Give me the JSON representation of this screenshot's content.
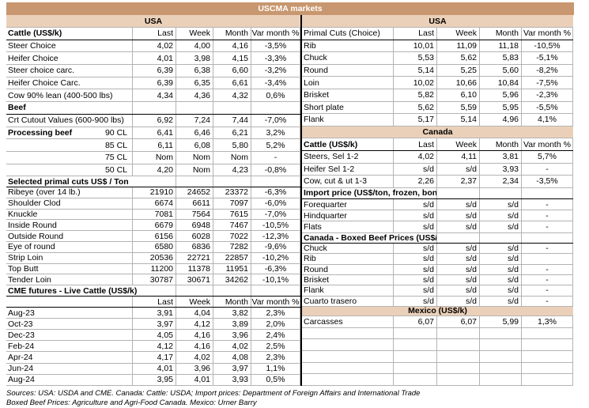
{
  "title": "USCMA markets",
  "columns": {
    "last": "Last",
    "week": "Week",
    "month": "Month",
    "var": "Var month %"
  },
  "colors": {
    "title_band": "#C8976F",
    "section_band": "#EBD0B9",
    "gridline": "#B3B3B3"
  },
  "left_table": {
    "rows": [
      {
        "t": "band",
        "label": "USA"
      },
      {
        "t": "head",
        "label": "Cattle (US$/k)",
        "bold": true
      },
      {
        "t": "row",
        "label": "Steer Choice",
        "last": "4,02",
        "week": "4,00",
        "month": "4,16",
        "var": "-3,5%"
      },
      {
        "t": "row",
        "label": "Heifer Choice",
        "last": "4,01",
        "week": "3,98",
        "month": "4,15",
        "var": "-3,3%"
      },
      {
        "t": "row",
        "label": "Steer choice carc.",
        "last": "6,39",
        "week": "6,38",
        "month": "6,60",
        "var": "-3,2%"
      },
      {
        "t": "row",
        "label": "Heifer Choice Carc.",
        "last": "6,39",
        "week": "6,35",
        "month": "6,61",
        "var": "-3,4%"
      },
      {
        "t": "row",
        "label": "Cow 90% lean (400-500 lbs)",
        "last": "4,34",
        "week": "4,36",
        "month": "4,32",
        "var": "0,6%"
      },
      {
        "t": "sec",
        "label": "Beef"
      },
      {
        "t": "row",
        "label": "Crt Cutout Values (600-900 lbs)",
        "last": "6,92",
        "week": "7,24",
        "month": "7,44",
        "var": "-7,0%"
      },
      {
        "t": "row",
        "label": "Processing beef",
        "bold": true,
        "sub": "90 CL",
        "last": "6,41",
        "week": "6,46",
        "month": "6,21",
        "var": "3,2%"
      },
      {
        "t": "row",
        "label": "",
        "sub": "85 CL",
        "last": "6,11",
        "week": "6,08",
        "month": "5,80",
        "var": "5,2%"
      },
      {
        "t": "row",
        "label": "",
        "sub": "75 CL",
        "last": "Nom",
        "week": "Nom",
        "month": "Nom",
        "var": "-"
      },
      {
        "t": "row",
        "label": "",
        "sub": "50 CL",
        "last": "4,20",
        "week": "Nom",
        "month": "4,23",
        "var": "-0,8%"
      },
      {
        "t": "sec",
        "label": "Selected primal cuts US$ / Ton",
        "wide": true
      },
      {
        "t": "row",
        "label": "Ribeye (over 14 lb.)",
        "last": "21910",
        "week": "24652",
        "month": "23372",
        "var": "-6,3%"
      },
      {
        "t": "row",
        "label": "Shoulder Clod",
        "last": "6674",
        "week": "6611",
        "month": "7097",
        "var": "-6,0%"
      },
      {
        "t": "row",
        "label": "Knuckle",
        "last": "7081",
        "week": "7564",
        "month": "7615",
        "var": "-7,0%"
      },
      {
        "t": "row",
        "label": "Inside Round",
        "last": "6679",
        "week": "6948",
        "month": "7467",
        "var": "-10,5%"
      },
      {
        "t": "row",
        "label": "Outside Round",
        "last": "6156",
        "week": "6028",
        "month": "7022",
        "var": "-12,3%"
      },
      {
        "t": "row",
        "label": "Eye of round",
        "last": "6580",
        "week": "6836",
        "month": "7282",
        "var": "-9,6%"
      },
      {
        "t": "row",
        "label": "Strip Loin",
        "last": "20536",
        "week": "22721",
        "month": "22857",
        "var": "-10,2%"
      },
      {
        "t": "row",
        "label": "Top Butt",
        "last": "11200",
        "week": "11378",
        "month": "11951",
        "var": "-6,3%"
      },
      {
        "t": "row",
        "label": "Tender Loin",
        "last": "30787",
        "week": "30671",
        "month": "34262",
        "var": "-10,1%"
      },
      {
        "t": "sec",
        "label": "CME futures - Live Cattle (US$/k)",
        "wide": true
      },
      {
        "t": "head",
        "label": ""
      },
      {
        "t": "row",
        "label": "Aug-23",
        "last": "3,91",
        "week": "4,04",
        "month": "3,82",
        "var": "2,3%"
      },
      {
        "t": "row",
        "label": "Oct-23",
        "last": "3,97",
        "week": "4,12",
        "month": "3,89",
        "var": "2,0%"
      },
      {
        "t": "row",
        "label": "Dec-23",
        "last": "4,05",
        "week": "4,16",
        "month": "3,96",
        "var": "2,4%"
      },
      {
        "t": "row",
        "label": "Feb-24",
        "last": "4,12",
        "week": "4,16",
        "month": "4,02",
        "var": "2,5%"
      },
      {
        "t": "row",
        "label": "Apr-24",
        "last": "4,17",
        "week": "4,02",
        "month": "4,08",
        "var": "2,3%"
      },
      {
        "t": "row",
        "label": "Jun-24",
        "last": "4,01",
        "week": "3,96",
        "month": "3,97",
        "var": "1,1%"
      },
      {
        "t": "row",
        "label": "Aug-24",
        "last": "3,95",
        "week": "4,01",
        "month": "3,93",
        "var": "0,5%"
      }
    ]
  },
  "right_table": {
    "rows": [
      {
        "t": "band",
        "label": "USA"
      },
      {
        "t": "head",
        "label": "Primal Cuts (Choice)"
      },
      {
        "t": "row",
        "label": "Rib",
        "last": "10,01",
        "week": "11,09",
        "month": "11,18",
        "var": "-10,5%"
      },
      {
        "t": "row",
        "label": "Chuck",
        "last": "5,53",
        "week": "5,62",
        "month": "5,83",
        "var": "-5,1%"
      },
      {
        "t": "row",
        "label": "Round",
        "last": "5,14",
        "week": "5,25",
        "month": "5,60",
        "var": "-8,2%"
      },
      {
        "t": "row",
        "label": "Loin",
        "last": "10,02",
        "week": "10,66",
        "month": "10,84",
        "var": "-7,5%"
      },
      {
        "t": "row",
        "label": "Brisket",
        "last": "5,82",
        "week": "6,10",
        "month": "5,96",
        "var": "-2,3%"
      },
      {
        "t": "row",
        "label": "Short plate",
        "last": "5,62",
        "week": "5,59",
        "month": "5,95",
        "var": "-5,5%"
      },
      {
        "t": "row",
        "label": "Flank",
        "last": "5,17",
        "week": "5,14",
        "month": "4,96",
        "var": "4,1%"
      },
      {
        "t": "band",
        "label": "Canada"
      },
      {
        "t": "head",
        "label": "Cattle (US$/k)",
        "bold": true
      },
      {
        "t": "row",
        "label": "Steers, Sel 1-2",
        "last": "4,02",
        "week": "4,11",
        "month": "3,81",
        "var": "5,7%"
      },
      {
        "t": "row",
        "label": "Heifer Sel 1-2",
        "last": "s/d",
        "week": "s/d",
        "month": "3,93",
        "var": "-"
      },
      {
        "t": "row",
        "label": "Cow, cut & ut 1-3",
        "last": "2,26",
        "week": "2,37",
        "month": "2,34",
        "var": "-3,5%"
      },
      {
        "t": "sec",
        "label": "Import price (US$/ton, frozen, boneless )",
        "wide": true
      },
      {
        "t": "row",
        "label": "Forequarter",
        "last": "s/d",
        "week": "s/d",
        "month": "s/d",
        "var": "-"
      },
      {
        "t": "row",
        "label": "Hindquarter",
        "last": "s/d",
        "week": "s/d",
        "month": "s/d",
        "var": "-"
      },
      {
        "t": "row",
        "label": "Flats",
        "last": "s/d",
        "week": "s/d",
        "month": "s/d",
        "var": "-"
      },
      {
        "t": "sec",
        "label": "Canada - Boxed Beef Prices (US$/k)",
        "wide": true
      },
      {
        "t": "row",
        "label": "Chuck",
        "last": "s/d",
        "week": "s/d",
        "month": "s/d",
        "var": "-"
      },
      {
        "t": "row",
        "label": "Rib",
        "last": "s/d",
        "week": "s/d",
        "month": "s/d",
        "var": ""
      },
      {
        "t": "row",
        "label": "Round",
        "last": "s/d",
        "week": "s/d",
        "month": "s/d",
        "var": "-"
      },
      {
        "t": "row",
        "label": "Brisket",
        "last": "s/d",
        "week": "s/d",
        "month": "s/d",
        "var": "-"
      },
      {
        "t": "row",
        "label": "Flank",
        "last": "s/d",
        "week": "s/d",
        "month": "s/d",
        "var": "-"
      },
      {
        "t": "row",
        "label": "Cuarto trasero",
        "last": "s/d",
        "week": "s/d",
        "month": "s/d",
        "var": "-"
      },
      {
        "t": "band",
        "label": "Mexico (US$/k)"
      },
      {
        "t": "row",
        "label": "Carcasses",
        "last": "6,07",
        "week": "6,07",
        "month": "5,99",
        "var": "1,3%"
      },
      {
        "t": "empty"
      },
      {
        "t": "empty"
      },
      {
        "t": "empty"
      },
      {
        "t": "empty"
      },
      {
        "t": "empty"
      }
    ]
  },
  "footer": {
    "line1": "Sources: USA: USDA and CME. Canada: Cattle: USDA; Import prices: Department of Foreign Affairs and International Trade",
    "line2": "Boxed Beef Prices: Agriculture and Agri-Food Canada. Mexico: Urner Barry"
  }
}
